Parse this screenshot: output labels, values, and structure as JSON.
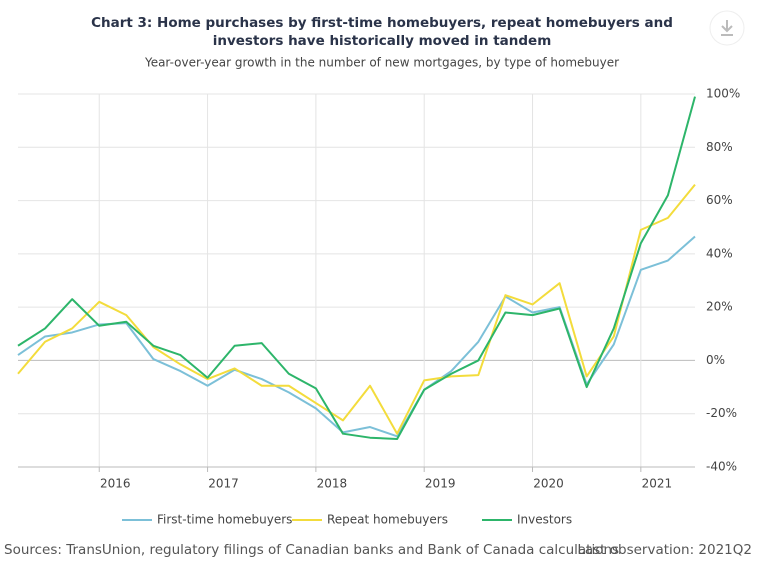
{
  "chart_data": {
    "type": "line",
    "title": "Chart 3: Home purchases by first-time homebuyers, repeat homebuyers and investors have historically moved in tandem",
    "subtitle": "Year-over-year growth in the number of new mortgages, by type of homebuyer",
    "source": "Sources: TransUnion, regulatory filings of Canadian banks and Bank of Canada calculations",
    "note": "Last observation: 2021Q2",
    "categories": [
      null,
      null,
      null,
      "2016",
      null,
      null,
      null,
      "2017",
      null,
      null,
      null,
      "2018",
      null,
      null,
      null,
      "2019",
      null,
      null,
      null,
      "2020",
      null,
      null,
      null,
      "2021",
      null,
      null
    ],
    "ylim": [
      -40,
      100
    ],
    "yticks": [
      {
        "value": -40,
        "label": "-40%"
      },
      {
        "value": -20,
        "label": "-20%"
      },
      {
        "value": 0,
        "label": "0%"
      },
      {
        "value": 20,
        "label": "20%"
      },
      {
        "value": 40,
        "label": "40%"
      },
      {
        "value": 60,
        "label": "60%"
      },
      {
        "value": 80,
        "label": "80%"
      },
      {
        "value": 100,
        "label": "100%"
      }
    ],
    "grid": true,
    "legend": "bottom",
    "series": [
      {
        "name": "First-time homebuyers",
        "color": "#7cc0d8",
        "values": [
          2,
          9,
          10.5,
          13.5,
          14,
          0.5,
          -4,
          -9.5,
          -3.5,
          -7,
          -12,
          -18,
          -27,
          -25,
          -28.5,
          -11,
          -4,
          7,
          24,
          18,
          20,
          -9,
          6,
          34,
          37.5,
          46.5
        ]
      },
      {
        "name": "Repeat homebuyers",
        "color": "#f3dc3c",
        "values": [
          -5,
          7,
          12,
          22,
          17,
          5,
          -1.5,
          -7,
          -3,
          -9.5,
          -9.5,
          -16,
          -22.5,
          -9.5,
          -27.5,
          -7.5,
          -6,
          -5.5,
          24.5,
          21,
          29,
          -6,
          9,
          49,
          53.5,
          66
        ]
      },
      {
        "name": "Investors",
        "color": "#2db56a",
        "values": [
          5.5,
          12,
          23,
          13,
          14.5,
          5.5,
          2,
          -6.5,
          5.5,
          6.5,
          -5,
          -10.5,
          -27.5,
          -29,
          -29.5,
          -11,
          -5,
          0,
          18,
          17,
          19.5,
          -10,
          12,
          44,
          62,
          99
        ]
      }
    ]
  }
}
